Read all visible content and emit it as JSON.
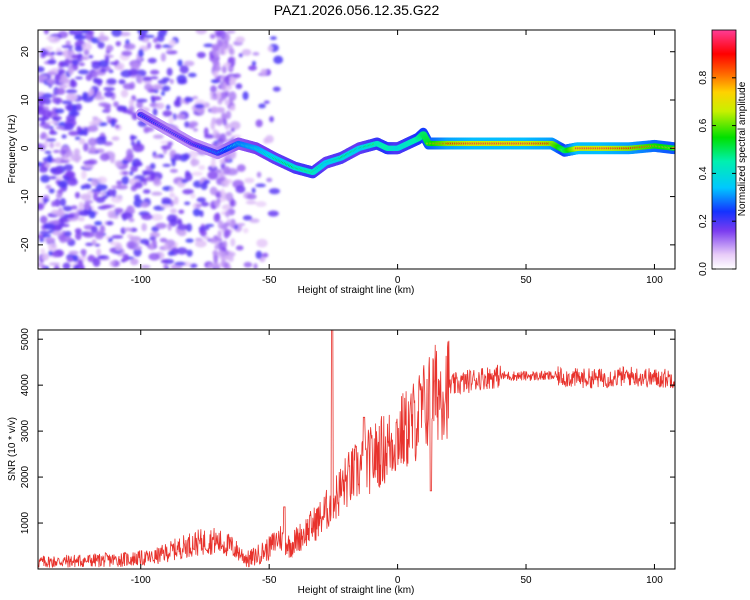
{
  "title": "PAZ1.2026.056.12.35.G22",
  "chart_data": [
    {
      "type": "heatmap",
      "xlabel": "Height of straight line (km)",
      "ylabel": "Frequency (Hz)",
      "xlim": [
        -140,
        108
      ],
      "ylim": [
        -25,
        24.5
      ],
      "xticks": [
        -100,
        -50,
        0,
        50,
        100
      ],
      "yticks": [
        -20,
        -10,
        0,
        10,
        20
      ],
      "colorbar": {
        "label": "Normalized spectral amplitude",
        "ticks": [
          0.0,
          0.2,
          0.4,
          0.6,
          0.8
        ],
        "range": [
          0,
          1
        ]
      },
      "ridge": {
        "height": [
          -100,
          -90,
          -80,
          -70,
          -62,
          -55,
          -48,
          -40,
          -33,
          -28,
          -22,
          -15,
          -8,
          -4,
          0,
          4,
          8,
          10,
          12,
          20,
          30,
          40,
          50,
          60,
          65,
          70,
          80,
          90,
          100,
          108
        ],
        "frequency": [
          7,
          4,
          1,
          -1,
          1,
          0,
          -2,
          -4,
          -5,
          -3,
          -2,
          0,
          1,
          0,
          0,
          1,
          2,
          3,
          1,
          1,
          1,
          1,
          1,
          1,
          -0.5,
          0,
          0,
          0,
          0.5,
          0
        ],
        "amplitude": [
          0.25,
          0.2,
          0.22,
          0.3,
          0.4,
          0.45,
          0.5,
          0.55,
          0.6,
          0.5,
          0.55,
          0.5,
          0.6,
          0.65,
          0.55,
          0.6,
          0.65,
          0.7,
          0.75,
          0.9,
          0.95,
          0.95,
          0.95,
          0.9,
          0.7,
          0.95,
          0.95,
          0.9,
          0.8,
          0.75
        ]
      }
    },
    {
      "type": "line",
      "xlabel": "Height of straight line (km)",
      "ylabel": "SNR (10 * v/v)",
      "xlim": [
        -140,
        108
      ],
      "ylim": [
        0,
        5200
      ],
      "xticks": [
        -100,
        -50,
        0,
        50,
        100
      ],
      "yticks": [
        1000,
        2000,
        3000,
        4000,
        5000
      ],
      "color": "#e8322c",
      "envelope": {
        "x": [
          -140,
          -110,
          -95,
          -88,
          -80,
          -72,
          -65,
          -58,
          -50,
          -46,
          -42,
          -36,
          -30,
          -26,
          -20,
          -14,
          -8,
          -3,
          0,
          5,
          10,
          14,
          18,
          25,
          32,
          40,
          50,
          60,
          70,
          80,
          90,
          100,
          108
        ],
        "y": [
          150,
          200,
          250,
          400,
          550,
          620,
          500,
          200,
          450,
          700,
          500,
          800,
          1100,
          1400,
          1900,
          2200,
          2500,
          2700,
          2900,
          3100,
          3500,
          3800,
          3950,
          4050,
          4150,
          4200,
          4200,
          4200,
          4150,
          4150,
          4200,
          4150,
          4150
        ]
      },
      "spikes": [
        {
          "x": -25.5,
          "y": 5200
        },
        {
          "x": -44,
          "y": 1350
        },
        {
          "x": -13,
          "y": 3300
        },
        {
          "x": 13,
          "y": 1700
        }
      ]
    }
  ]
}
